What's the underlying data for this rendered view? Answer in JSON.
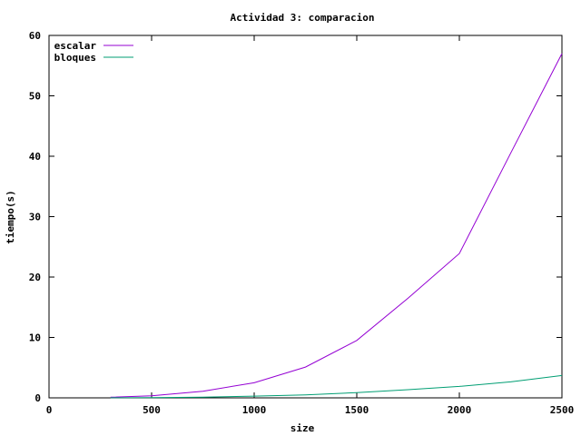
{
  "chart_data": {
    "type": "line",
    "title": "Actividad 3: comparacion",
    "xlabel": "size",
    "ylabel": "tiempo(s)",
    "xlim": [
      0,
      2500
    ],
    "ylim": [
      0,
      60
    ],
    "xticks": [
      0,
      500,
      1000,
      1500,
      2000,
      2500
    ],
    "yticks": [
      0,
      10,
      20,
      30,
      40,
      50,
      60
    ],
    "grid": false,
    "legend": "top-left",
    "series": [
      {
        "name": "escalar",
        "color": "#9400d3",
        "x": [
          300,
          500,
          750,
          1000,
          1250,
          1500,
          1750,
          2000,
          2250,
          2500
        ],
        "y": [
          0.1,
          0.35,
          1.1,
          2.5,
          5.1,
          9.5,
          16.5,
          23.9,
          40.5,
          57.0
        ]
      },
      {
        "name": "bloques",
        "color": "#009e73",
        "x": [
          300,
          500,
          750,
          1000,
          1250,
          1500,
          1750,
          2000,
          2250,
          2500
        ],
        "y": [
          0.02,
          0.05,
          0.12,
          0.28,
          0.5,
          0.85,
          1.35,
          1.9,
          2.65,
          3.7
        ]
      }
    ]
  }
}
